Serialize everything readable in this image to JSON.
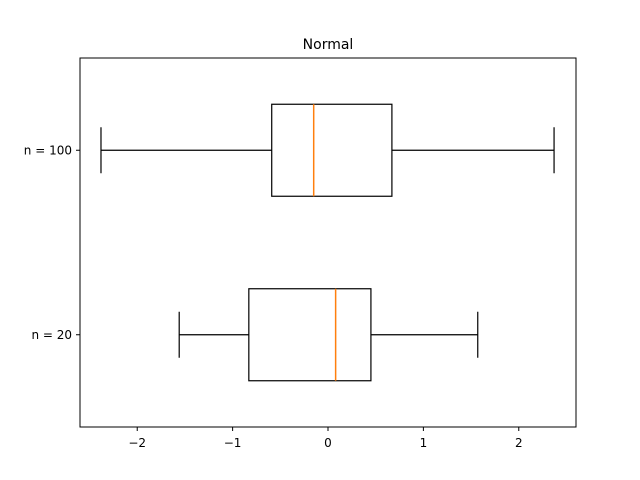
{
  "chart_data": {
    "type": "boxplot",
    "orientation": "horizontal",
    "title": "Normal",
    "xlabel": "",
    "ylabel": "",
    "xlim": [
      -2.6,
      2.6
    ],
    "xticks": [
      -2,
      -1,
      0,
      1,
      2
    ],
    "xtick_labels": [
      "−2",
      "−1",
      "0",
      "1",
      "2"
    ],
    "grid": false,
    "series": [
      {
        "label": "n = 20",
        "whisker_low": -1.56,
        "q1": -0.83,
        "median": 0.08,
        "q3": 0.45,
        "whisker_high": 1.57
      },
      {
        "label": "n = 100",
        "whisker_low": -2.38,
        "q1": -0.59,
        "median": -0.15,
        "q3": 0.67,
        "whisker_high": 2.37
      }
    ],
    "colors": {
      "box": "#000000",
      "median": "#ff7f0e"
    }
  }
}
